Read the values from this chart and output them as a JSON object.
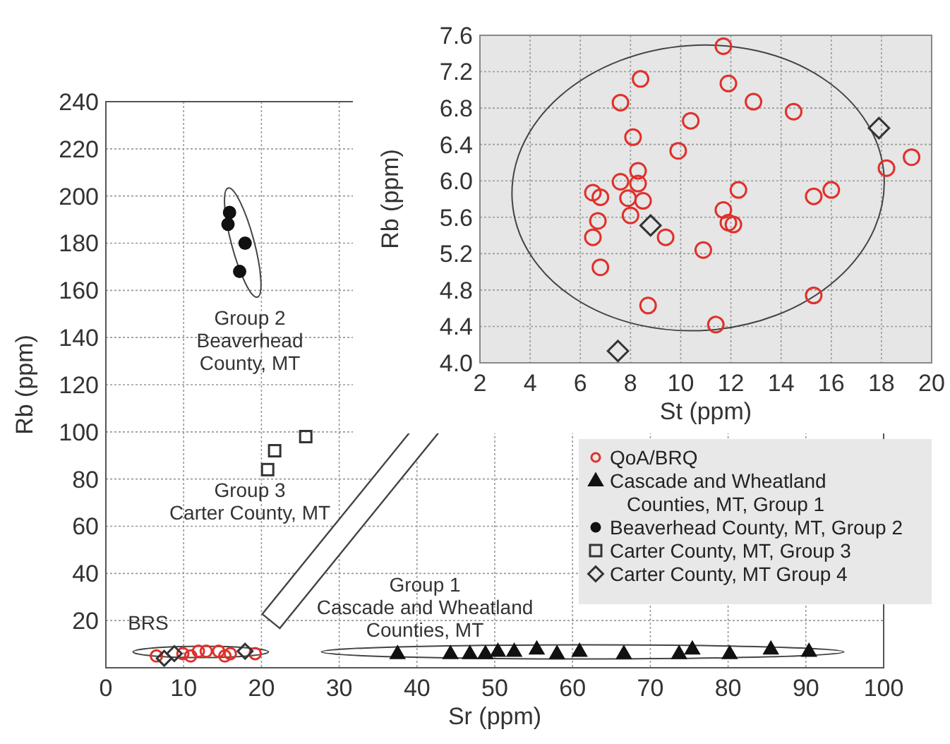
{
  "chart_data": [
    {
      "type": "scatter",
      "xlabel": "Sr (ppm)",
      "ylabel": "Rb (ppm)",
      "xlim": [
        0,
        100
      ],
      "ylim": [
        0,
        240
      ],
      "xticks": [
        0,
        10,
        20,
        30,
        40,
        50,
        60,
        70,
        80,
        90,
        100
      ],
      "yticks": [
        20,
        40,
        60,
        80,
        100,
        120,
        140,
        160,
        180,
        200,
        220,
        240
      ],
      "grid": true,
      "legend": "bottom right",
      "annotations": [
        "Group 2\nBeaverhead\nCounty, MT",
        "Group 3\nCarter County, MT",
        "BRS",
        "Group 1\nCascade and Wheatland\nCounties, MT"
      ],
      "series": [
        {
          "name": "QoA/BRQ",
          "color": "#e0302a",
          "marker": "circle",
          "x": [
            6.5,
            9.9,
            10.9,
            11.9,
            12.9,
            14.5,
            15.3,
            16.0,
            19.2
          ],
          "values": [
            5,
            6,
            5,
            7,
            7,
            7,
            5,
            6,
            6
          ]
        },
        {
          "name": "Cascade and Wheatland Counties, MT, Group 1",
          "color": "#111111",
          "marker": "triangle",
          "x": [
            37.5,
            44.3,
            46.8,
            48.8,
            50.4,
            52.5,
            55.4,
            58.0,
            60.9,
            66.6,
            73.7,
            75.4,
            80.2,
            85.5,
            90.4
          ],
          "values": [
            6,
            6,
            6,
            6,
            7,
            7,
            8,
            6,
            7,
            6,
            6,
            8,
            6,
            8,
            7
          ]
        },
        {
          "name": "Beaverhead County, MT, Group 2",
          "color": "#111111",
          "marker": "circle",
          "x": [
            15.9,
            15.7,
            17.9,
            17.2
          ],
          "values": [
            193,
            188,
            180,
            168
          ]
        },
        {
          "name": "Carter County, MT, Group 3",
          "color": "#333333",
          "marker": "square",
          "x": [
            20.8,
            21.7,
            25.7
          ],
          "values": [
            84,
            92,
            98
          ]
        },
        {
          "name": "Carter County, MT Group 4",
          "color": "#333333",
          "marker": "diamond",
          "x": [
            7.5,
            8.8,
            17.9
          ],
          "values": [
            4,
            6,
            7
          ]
        }
      ]
    },
    {
      "type": "scatter",
      "xlabel": "St (ppm)",
      "ylabel": "Rb (ppm)",
      "xlim": [
        2,
        20
      ],
      "ylim": [
        4.0,
        7.6
      ],
      "xticks": [
        2,
        4,
        6,
        8,
        10,
        12,
        14,
        16,
        18,
        20
      ],
      "yticks": [
        {
          "value": 4,
          "label": "4.0"
        },
        4.4,
        4.8,
        5.2,
        5.6,
        {
          "value": 6,
          "label": "6.0"
        },
        6.4,
        6.8,
        7.2,
        7.6
      ],
      "grid": true,
      "series": [
        {
          "color": "#e0302a",
          "marker": "circle",
          "x": [
            11.7,
            8.4,
            11.9,
            7.6,
            12.9,
            14.5,
            10.4,
            8.1,
            9.9,
            19.2,
            18.2,
            8.3,
            7.6,
            8.3,
            6.5,
            6.8,
            7.9,
            8.5,
            12.3,
            15.3,
            16.0,
            11.7,
            11.9,
            12.1,
            8.0,
            6.7,
            6.5,
            9.4,
            10.9,
            6.8,
            15.3,
            8.7,
            11.4
          ],
          "values": [
            7.48,
            7.12,
            7.07,
            6.86,
            6.87,
            6.76,
            6.66,
            6.48,
            6.33,
            6.26,
            6.14,
            6.11,
            5.99,
            5.97,
            5.87,
            5.82,
            5.81,
            5.78,
            5.9,
            5.83,
            5.9,
            5.68,
            5.54,
            5.52,
            5.62,
            5.56,
            5.38,
            5.38,
            5.24,
            5.05,
            4.74,
            4.63,
            4.42
          ]
        },
        {
          "color": "#333333",
          "marker": "diamond",
          "x": [
            7.5,
            8.8,
            17.9
          ],
          "values": [
            4.13,
            5.51,
            6.58
          ]
        }
      ]
    }
  ]
}
